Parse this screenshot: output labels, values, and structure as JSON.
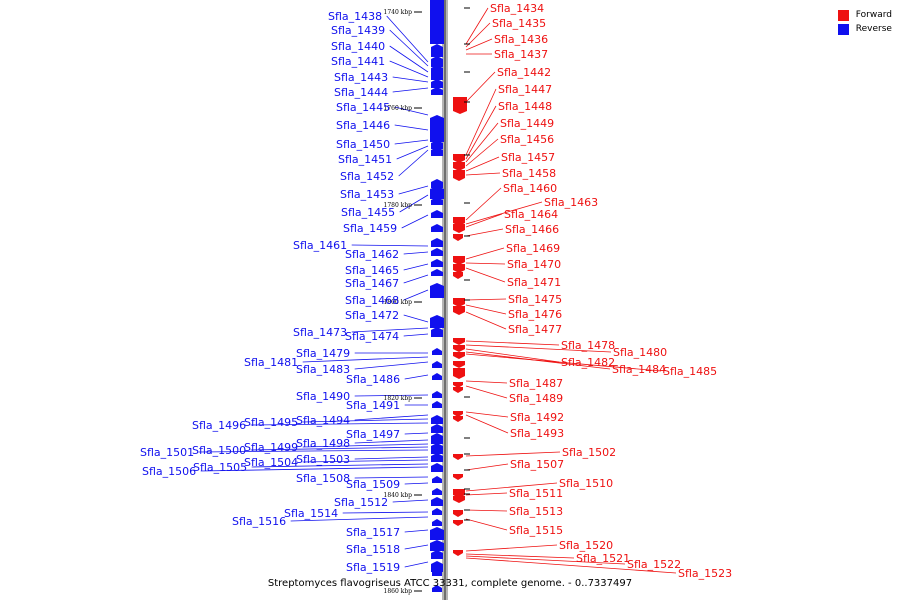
{
  "colors": {
    "forward": "#ee1111",
    "reverse": "#1010ee",
    "backbone": "#8a8a8a"
  },
  "legend": [
    {
      "label": "Forward",
      "color": "#ee1111"
    },
    {
      "label": "Reverse",
      "color": "#1010ee"
    }
  ],
  "caption": "Streptomyces flavogriseus ATCC 33331, complete genome. - 0..7337497",
  "ticks": [
    "1740 kbp",
    "1760 kbp",
    "1780 kbp",
    "1800 kbp",
    "1820 kbp",
    "1840 kbp",
    "1860 kbp"
  ],
  "reverse_genes": [
    "Sfla_1438",
    "Sfla_1439",
    "Sfla_1440",
    "Sfla_1441",
    "Sfla_1443",
    "Sfla_1444",
    "Sfla_1445",
    "Sfla_1446",
    "Sfla_1450",
    "Sfla_1451",
    "Sfla_1452",
    "Sfla_1453",
    "Sfla_1455",
    "Sfla_1459",
    "Sfla_1461",
    "Sfla_1462",
    "Sfla_1465",
    "Sfla_1467",
    "Sfla_1468",
    "Sfla_1472",
    "Sfla_1473",
    "Sfla_1474",
    "Sfla_1479",
    "Sfla_1481",
    "Sfla_1483",
    "Sfla_1486",
    "Sfla_1490",
    "Sfla_1491",
    "Sfla_1494",
    "Sfla_1495",
    "Sfla_1496",
    "Sfla_1497",
    "Sfla_1498",
    "Sfla_1499",
    "Sfla_1500",
    "Sfla_1501",
    "Sfla_1503",
    "Sfla_1504",
    "Sfla_1505",
    "Sfla_1506",
    "Sfla_1508",
    "Sfla_1509",
    "Sfla_1512",
    "Sfla_1514",
    "Sfla_1516",
    "Sfla_1517",
    "Sfla_1518",
    "Sfla_1519"
  ],
  "forward_genes": [
    "Sfla_1434",
    "Sfla_1435",
    "Sfla_1436",
    "Sfla_1437",
    "Sfla_1442",
    "Sfla_1447",
    "Sfla_1448",
    "Sfla_1449",
    "Sfla_1456",
    "Sfla_1457",
    "Sfla_1458",
    "Sfla_1460",
    "Sfla_1463",
    "Sfla_1464",
    "Sfla_1466",
    "Sfla_1469",
    "Sfla_1470",
    "Sfla_1471",
    "Sfla_1475",
    "Sfla_1476",
    "Sfla_1477",
    "Sfla_1478",
    "Sfla_1480",
    "Sfla_1482",
    "Sfla_1484",
    "Sfla_1485",
    "Sfla_1487",
    "Sfla_1489",
    "Sfla_1492",
    "Sfla_1493",
    "Sfla_1502",
    "Sfla_1507",
    "Sfla_1510",
    "Sfla_1511",
    "Sfla_1513",
    "Sfla_1515",
    "Sfla_1520",
    "Sfla_1521",
    "Sfla_1522",
    "Sfla_1523"
  ]
}
